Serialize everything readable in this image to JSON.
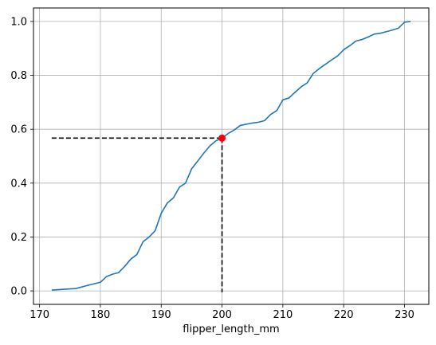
{
  "chart_data": {
    "type": "line",
    "title": "",
    "xlabel": "flipper_length_mm",
    "ylabel": "",
    "xlim": [
      169,
      234
    ],
    "ylim": [
      -0.05,
      1.05
    ],
    "xticks": [
      170,
      180,
      190,
      200,
      210,
      220,
      230
    ],
    "yticks": [
      0.0,
      0.2,
      0.4,
      0.6,
      0.8,
      1.0
    ],
    "xtick_labels": [
      "170",
      "180",
      "190",
      "200",
      "210",
      "220",
      "230"
    ],
    "ytick_labels": [
      "0.0",
      "0.2",
      "0.4",
      "0.6",
      "0.8",
      "1.0"
    ],
    "grid": true,
    "series": [
      {
        "color": "#1f77b4",
        "x": [
          172,
          174,
          176,
          178,
          180,
          181,
          182,
          183,
          184,
          185,
          186,
          187,
          188,
          189,
          190,
          191,
          192,
          193,
          194,
          195,
          196,
          197,
          198,
          199,
          200,
          201,
          202,
          203,
          205,
          206,
          207,
          208,
          209,
          210,
          211,
          212,
          213,
          214,
          215,
          216,
          217,
          218,
          219,
          220,
          221,
          222,
          223,
          224,
          225,
          226,
          227,
          228,
          229,
          230,
          231
        ],
        "y": [
          0.003,
          0.006,
          0.009,
          0.021,
          0.032,
          0.053,
          0.062,
          0.068,
          0.091,
          0.118,
          0.135,
          0.182,
          0.2,
          0.223,
          0.288,
          0.326,
          0.345,
          0.385,
          0.4,
          0.453,
          0.482,
          0.511,
          0.538,
          0.557,
          0.567,
          0.584,
          0.597,
          0.614,
          0.623,
          0.626,
          0.632,
          0.655,
          0.669,
          0.709,
          0.716,
          0.737,
          0.757,
          0.772,
          0.807,
          0.825,
          0.841,
          0.857,
          0.872,
          0.895,
          0.91,
          0.927,
          0.933,
          0.942,
          0.953,
          0.956,
          0.962,
          0.968,
          0.975,
          0.997,
          1.0
        ]
      }
    ],
    "reference_point": {
      "x": 200,
      "y": 0.567,
      "color": "#ff0000",
      "guide_color": "#000000",
      "guide_x_start": 172,
      "guide_y_start": -0.005
    }
  }
}
